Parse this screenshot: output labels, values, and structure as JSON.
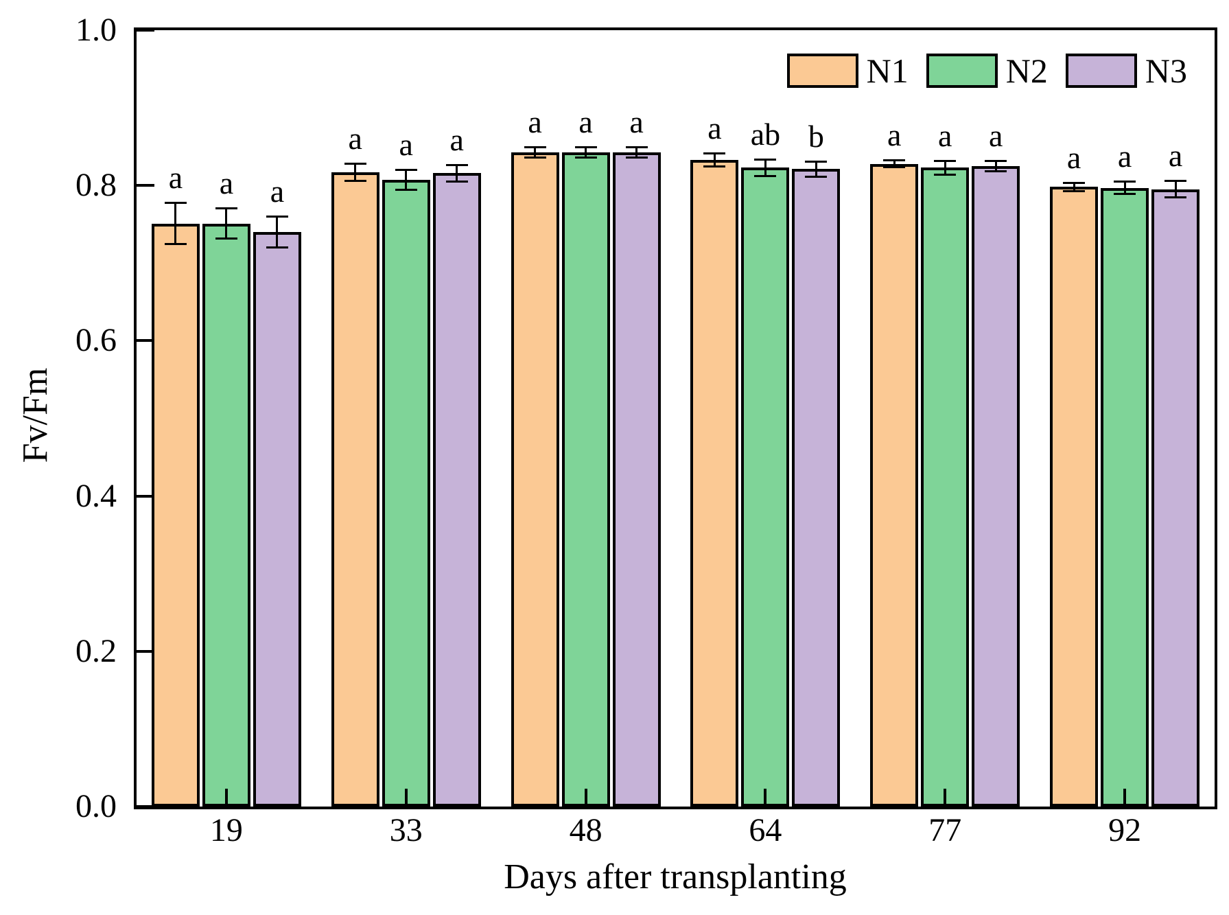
{
  "chart_data": {
    "type": "bar",
    "title": "",
    "xlabel": "Days after transplanting",
    "ylabel": "Fv/Fm",
    "categories": [
      "19",
      "33",
      "48",
      "64",
      "77",
      "92"
    ],
    "series": [
      {
        "name": "N1",
        "color": "#FBC994",
        "values": [
          0.751,
          0.817,
          0.843,
          0.833,
          0.828,
          0.798
        ],
        "errors": [
          0.028,
          0.012,
          0.008,
          0.01,
          0.006,
          0.007
        ],
        "letters": [
          "a",
          "a",
          "a",
          "a",
          "a",
          "a"
        ]
      },
      {
        "name": "N2",
        "color": "#7FD498",
        "values": [
          0.751,
          0.807,
          0.843,
          0.823,
          0.823,
          0.797
        ],
        "errors": [
          0.021,
          0.014,
          0.008,
          0.012,
          0.01,
          0.009
        ],
        "letters": [
          "a",
          "a",
          "a",
          "ab",
          "a",
          "a"
        ]
      },
      {
        "name": "N3",
        "color": "#C6B3D8",
        "values": [
          0.74,
          0.816,
          0.843,
          0.821,
          0.825,
          0.795
        ],
        "errors": [
          0.021,
          0.012,
          0.008,
          0.011,
          0.008,
          0.012
        ],
        "letters": [
          "a",
          "a",
          "a",
          "b",
          "a",
          "a"
        ]
      }
    ],
    "ylim": [
      0.0,
      1.0
    ],
    "yticks": [
      0.0,
      0.2,
      0.4,
      0.6,
      0.8,
      1.0
    ],
    "ytick_labels": [
      "0.0",
      "0.2",
      "0.4",
      "0.6",
      "0.8",
      "1.0"
    ],
    "legend_position": "top-right",
    "grid": false,
    "error_bars": true,
    "bar_edge_color": "#000000",
    "axis_color": "#000000",
    "background_color": "#FFFFFF"
  }
}
